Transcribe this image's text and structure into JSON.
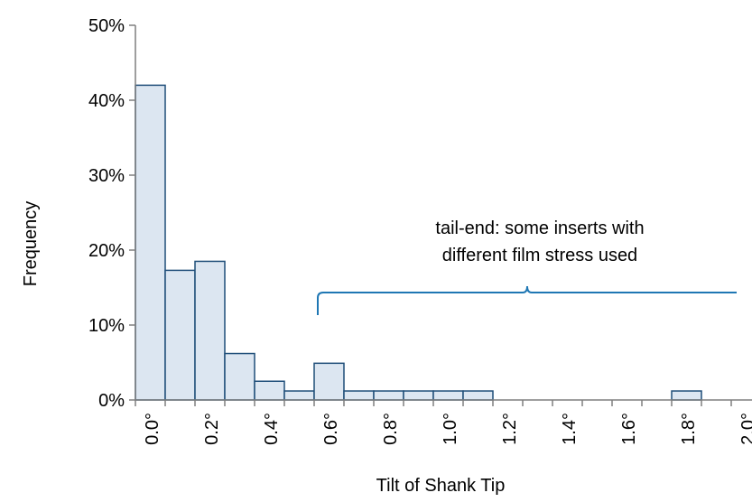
{
  "chart_data": {
    "type": "bar",
    "xlabel": "Tilt of Shank Tip",
    "ylabel": "Frequency",
    "ylim": [
      0,
      50
    ],
    "y_ticks": [
      "0%",
      "10%",
      "20%",
      "30%",
      "40%",
      "50%"
    ],
    "x_ticks": [
      "0.0°",
      "0.2°",
      "0.4°",
      "0.6°",
      "0.8°",
      "1.0°",
      "1.2°",
      "1.4°",
      "1.6°",
      "1.8°",
      "2.0°"
    ],
    "bin_width": 0.1,
    "bins": [
      {
        "x": 0.0,
        "value": 42.0
      },
      {
        "x": 0.1,
        "value": 17.3
      },
      {
        "x": 0.2,
        "value": 18.5
      },
      {
        "x": 0.3,
        "value": 6.2
      },
      {
        "x": 0.4,
        "value": 2.5
      },
      {
        "x": 0.5,
        "value": 1.2
      },
      {
        "x": 0.6,
        "value": 4.9
      },
      {
        "x": 0.7,
        "value": 1.2
      },
      {
        "x": 0.8,
        "value": 1.2
      },
      {
        "x": 0.9,
        "value": 1.2
      },
      {
        "x": 1.0,
        "value": 1.2
      },
      {
        "x": 1.1,
        "value": 1.2
      },
      {
        "x": 1.2,
        "value": 0
      },
      {
        "x": 1.3,
        "value": 0
      },
      {
        "x": 1.4,
        "value": 0
      },
      {
        "x": 1.5,
        "value": 0
      },
      {
        "x": 1.6,
        "value": 0
      },
      {
        "x": 1.7,
        "value": 0
      },
      {
        "x": 1.8,
        "value": 1.2
      },
      {
        "x": 1.9,
        "value": 0
      }
    ],
    "annotation": {
      "line1": "tail-end: some inserts with",
      "line2": "different film stress used",
      "range": [
        0.6,
        2.0
      ]
    },
    "colors": {
      "bar_fill": "#dce6f1",
      "bar_stroke": "#1f4e79",
      "axis": "#7f7f7f",
      "brace": "#1f77b4"
    }
  }
}
